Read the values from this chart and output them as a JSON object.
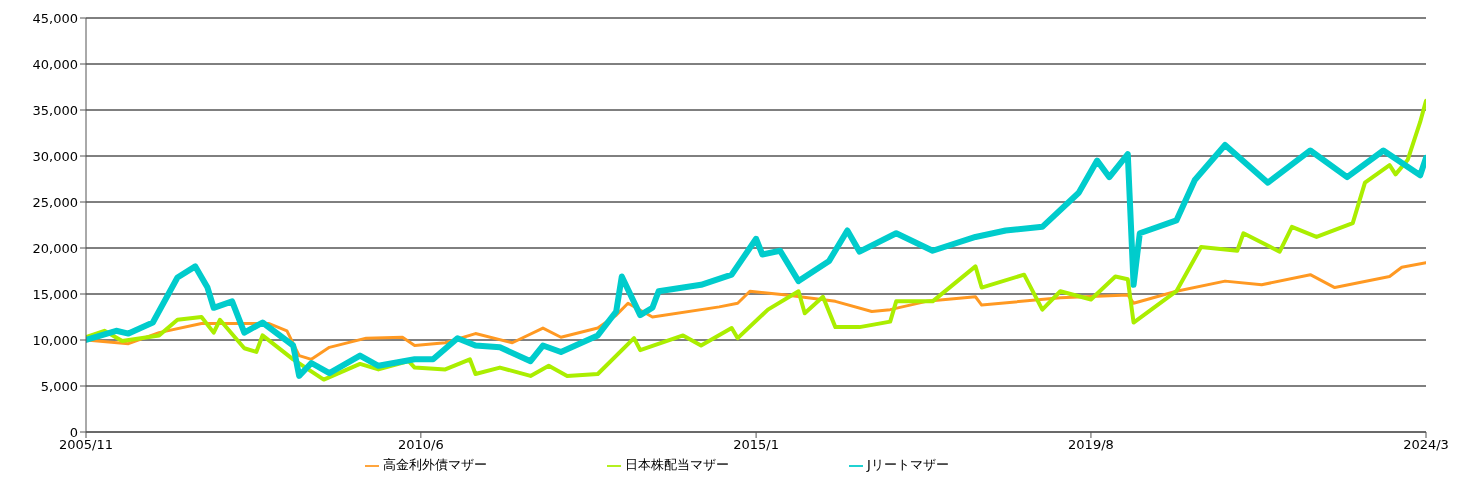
{
  "chart_data": {
    "type": "line",
    "xlim": [
      "2005-11",
      "2024-03"
    ],
    "xticks": [
      {
        "value": "2005-11",
        "label": "2005/11"
      },
      {
        "value": "2010-06",
        "label": "2010/6"
      },
      {
        "value": "2015-01",
        "label": "2015/1"
      },
      {
        "value": "2019-08",
        "label": "2019/8"
      },
      {
        "value": "2024-03",
        "label": "2024/3"
      }
    ],
    "ylim": [
      0,
      45000
    ],
    "yticks": [
      0,
      {
        "value": 5000,
        "label": "5,000"
      },
      {
        "value": 10000,
        "label": "10,000"
      },
      {
        "value": 15000,
        "label": "15,000"
      },
      {
        "value": 20000,
        "label": "20,000"
      },
      {
        "value": 25000,
        "label": "25,000"
      },
      {
        "value": 30000,
        "label": "30,000"
      },
      {
        "value": 35000,
        "label": "35,000"
      },
      {
        "value": 40000,
        "label": "40,000"
      },
      {
        "value": 45000,
        "label": "45,000"
      }
    ],
    "grid": "y",
    "legend": "bottom",
    "marker": "none",
    "line_style": "solid",
    "series": [
      {
        "name": "高金利外債マザー",
        "color": "#ff9922",
        "x": [
          "2005-11",
          "2006-06",
          "2006-11",
          "2007-06",
          "2008-05",
          "2008-08",
          "2008-10",
          "2008-12",
          "2009-03",
          "2009-09",
          "2010-03",
          "2010-05",
          "2010-10",
          "2011-03",
          "2011-09",
          "2012-02",
          "2012-05",
          "2012-11",
          "2013-02",
          "2013-04",
          "2013-08",
          "2014-07",
          "2014-10",
          "2014-12",
          "2015-06",
          "2016-02",
          "2016-08",
          "2016-11",
          "2017-05",
          "2018-01",
          "2018-02",
          "2019-03",
          "2020-02",
          "2020-03",
          "2020-10",
          "2021-06",
          "2021-12",
          "2022-08",
          "2022-12",
          "2023-09",
          "2023-11",
          "2024-03"
        ],
        "values": [
          10000,
          9600,
          10800,
          11800,
          11800,
          11000,
          8300,
          7900,
          9200,
          10200,
          10300,
          9400,
          9700,
          10700,
          9700,
          11300,
          10300,
          11300,
          12700,
          14000,
          12500,
          13600,
          14000,
          15300,
          14900,
          14200,
          13100,
          13300,
          14200,
          14700,
          13800,
          14600,
          14900,
          14000,
          15300,
          16400,
          16000,
          17100,
          15700,
          16900,
          17900,
          18400
        ]
      },
      {
        "name": "日本株配当マザー",
        "color": "#aaee00",
        "x": [
          "2005-11",
          "2006-02",
          "2006-05",
          "2006-11",
          "2007-02",
          "2007-06",
          "2007-08",
          "2007-09",
          "2008-01",
          "2008-03",
          "2008-04",
          "2008-09",
          "2009-02",
          "2009-08",
          "2009-11",
          "2010-04",
          "2010-05",
          "2010-10",
          "2011-02",
          "2011-03",
          "2011-07",
          "2011-12",
          "2012-03",
          "2012-06",
          "2012-11",
          "2013-05",
          "2013-06",
          "2014-01",
          "2014-04",
          "2014-09",
          "2014-10",
          "2015-03",
          "2015-08",
          "2015-09",
          "2015-12",
          "2016-02",
          "2016-06",
          "2016-11",
          "2016-12",
          "2017-06",
          "2018-01",
          "2018-02",
          "2018-09",
          "2018-12",
          "2019-03",
          "2019-08",
          "2019-12",
          "2020-02",
          "2020-03",
          "2020-10",
          "2021-02",
          "2021-08",
          "2021-09",
          "2022-03",
          "2022-05",
          "2022-09",
          "2023-03",
          "2023-05",
          "2023-09",
          "2023-10",
          "2023-12",
          "2024-02",
          "2024-03"
        ],
        "values": [
          10300,
          11000,
          9900,
          10500,
          12200,
          12500,
          10800,
          12200,
          9100,
          8700,
          10500,
          7900,
          5700,
          7400,
          6800,
          7700,
          7000,
          6800,
          7900,
          6300,
          7000,
          6100,
          7200,
          6100,
          6300,
          10200,
          8900,
          10500,
          9400,
          11300,
          10200,
          13300,
          15300,
          12900,
          14700,
          11400,
          11400,
          12000,
          14200,
          14200,
          18000,
          15700,
          17100,
          13300,
          15300,
          14400,
          16900,
          16600,
          11900,
          15300,
          20100,
          19700,
          21600,
          19600,
          22300,
          21200,
          22700,
          27100,
          29000,
          28000,
          29600,
          33700,
          36000
        ]
      },
      {
        "name": "Jリートマザー",
        "color": "#00cccc",
        "x": [
          "2005-11",
          "2006-04",
          "2006-06",
          "2006-10",
          "2007-02",
          "2007-05",
          "2007-07",
          "2007-08",
          "2007-11",
          "2008-01",
          "2008-04",
          "2008-09",
          "2008-10",
          "2008-12",
          "2009-03",
          "2009-08",
          "2009-11",
          "2010-05",
          "2010-08",
          "2010-12",
          "2011-03",
          "2011-07",
          "2011-12",
          "2012-02",
          "2012-05",
          "2012-11",
          "2013-02",
          "2013-03",
          "2013-06",
          "2013-08",
          "2013-09",
          "2014-04",
          "2014-09",
          "2015-01",
          "2015-02",
          "2015-05",
          "2015-08",
          "2016-01",
          "2016-04",
          "2016-06",
          "2016-12",
          "2017-06",
          "2018-01",
          "2018-06",
          "2018-12",
          "2019-06",
          "2019-09",
          "2019-11",
          "2020-02",
          "2020-03",
          "2020-04",
          "2020-10",
          "2021-01",
          "2021-06",
          "2022-01",
          "2022-08",
          "2023-02",
          "2023-08",
          "2024-02",
          "2024-03"
        ],
        "values": [
          10000,
          11000,
          10700,
          11900,
          16800,
          18000,
          15700,
          13500,
          14200,
          10800,
          11900,
          9400,
          6100,
          7500,
          6400,
          8300,
          7200,
          7900,
          7900,
          10200,
          9400,
          9200,
          7700,
          9400,
          8700,
          10500,
          13100,
          16900,
          12700,
          13500,
          15300,
          16000,
          17100,
          21000,
          19300,
          19700,
          16400,
          18600,
          21900,
          19600,
          21600,
          19700,
          21200,
          21900,
          22300,
          26000,
          29500,
          27700,
          30200,
          16000,
          21600,
          23000,
          27400,
          31200,
          27100,
          30600,
          27700,
          30600,
          27900,
          29800
        ]
      }
    ]
  }
}
